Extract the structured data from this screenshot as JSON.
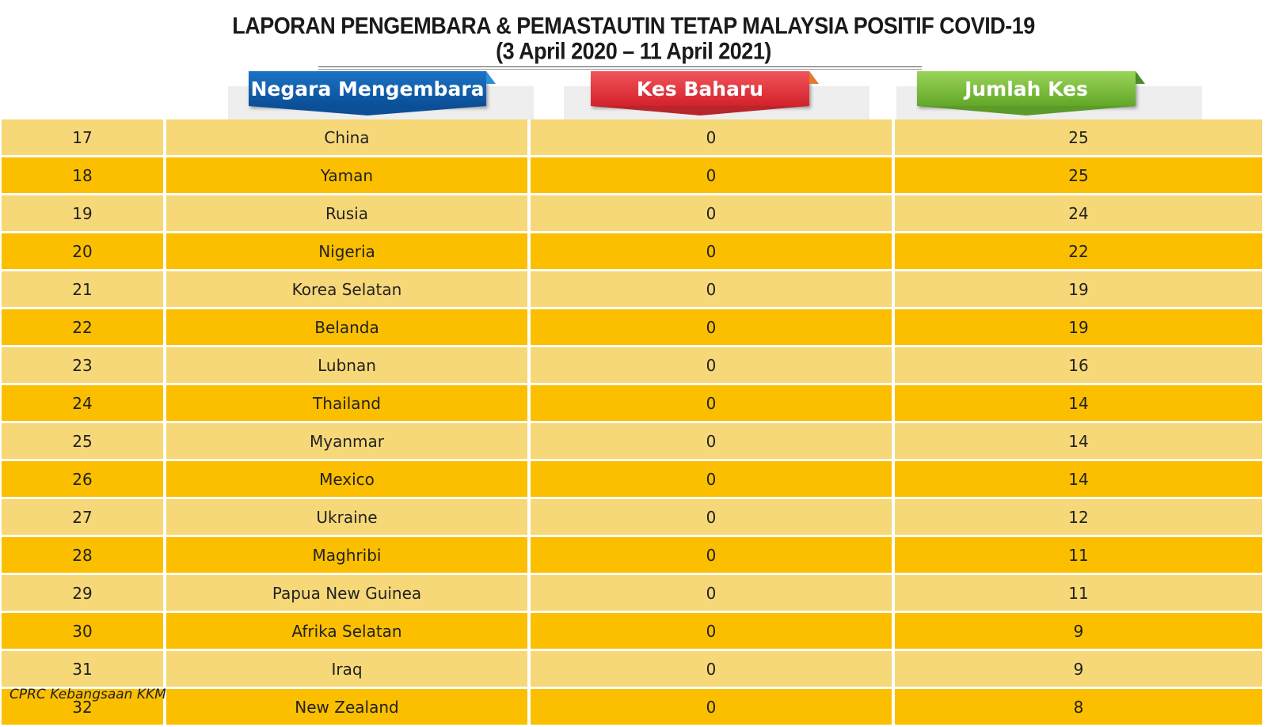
{
  "title": {
    "line1": "LAPORAN PENGEMBARA & PEMASTAUTIN TETAP MALAYSIA POSITIF COVID-19",
    "line2": "(3 April 2020 – 11 April 2021)"
  },
  "headers": {
    "country": "Negara Mengembara",
    "new_cases": "Kes Baharu",
    "total_cases": "Jumlah Kes"
  },
  "colors": {
    "row_light": "#f7d878",
    "row_dark": "#fbbf00",
    "header_country": "#0b4f96",
    "header_new": "#d3222b",
    "header_total": "#62a828"
  },
  "rows": [
    {
      "no": "17",
      "country": "China",
      "new": "0",
      "total": "25"
    },
    {
      "no": "18",
      "country": "Yaman",
      "new": "0",
      "total": "25"
    },
    {
      "no": "19",
      "country": "Rusia",
      "new": "0",
      "total": "24"
    },
    {
      "no": "20",
      "country": "Nigeria",
      "new": "0",
      "total": "22"
    },
    {
      "no": "21",
      "country": "Korea Selatan",
      "new": "0",
      "total": "19"
    },
    {
      "no": "22",
      "country": "Belanda",
      "new": "0",
      "total": "19"
    },
    {
      "no": "23",
      "country": "Lubnan",
      "new": "0",
      "total": "16"
    },
    {
      "no": "24",
      "country": "Thailand",
      "new": "0",
      "total": "14"
    },
    {
      "no": "25",
      "country": "Myanmar",
      "new": "0",
      "total": "14"
    },
    {
      "no": "26",
      "country": "Mexico",
      "new": "0",
      "total": "14"
    },
    {
      "no": "27",
      "country": "Ukraine",
      "new": "0",
      "total": "12"
    },
    {
      "no": "28",
      "country": "Maghribi",
      "new": "0",
      "total": "11"
    },
    {
      "no": "29",
      "country": "Papua New Guinea",
      "new": "0",
      "total": "11"
    },
    {
      "no": "30",
      "country": "Afrika Selatan",
      "new": "0",
      "total": "9"
    },
    {
      "no": "31",
      "country": "Iraq",
      "new": "0",
      "total": "9"
    },
    {
      "no": "32",
      "country": "New Zealand",
      "new": "0",
      "total": "8"
    }
  ],
  "footer": "CPRC Kebangsaan KKM"
}
